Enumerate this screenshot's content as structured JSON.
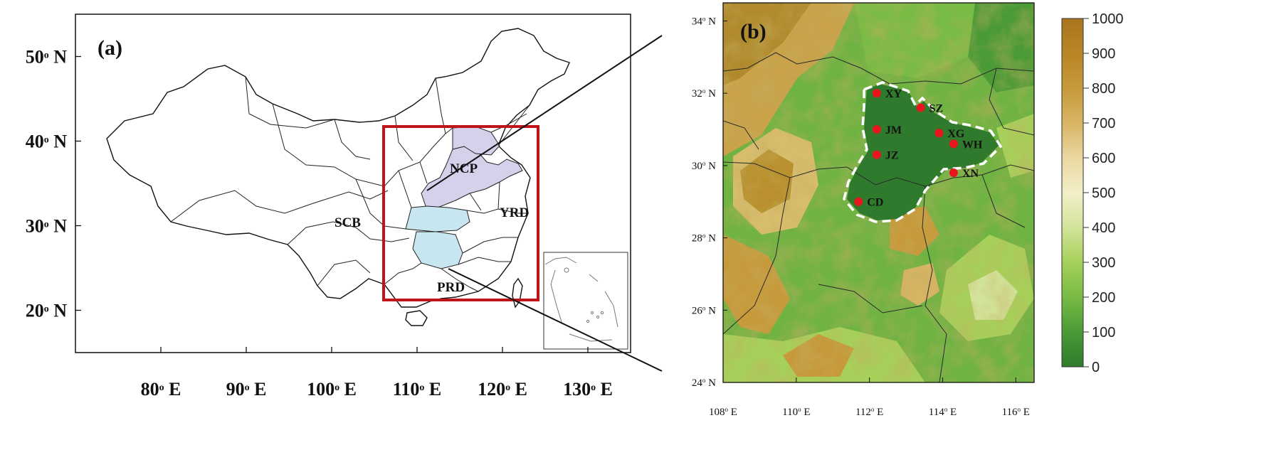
{
  "panel_a": {
    "label": "(a)",
    "lat_ticks": [
      {
        "sup": "o",
        "text": "50",
        "suffix": " N",
        "lat": 50
      },
      {
        "sup": "o",
        "text": "40",
        "suffix": " N",
        "lat": 40
      },
      {
        "sup": "o",
        "text": "30",
        "suffix": " N",
        "lat": 30
      },
      {
        "sup": "o",
        "text": "20",
        "suffix": " N",
        "lat": 20
      }
    ],
    "lon_ticks": [
      {
        "text": "80",
        "suffix": " E",
        "lon": 80
      },
      {
        "text": "90",
        "suffix": " E",
        "lon": 90
      },
      {
        "text": "100",
        "suffix": " E",
        "lon": 100
      },
      {
        "text": "110",
        "suffix": " E",
        "lon": 110
      },
      {
        "text": "120",
        "suffix": " E",
        "lon": 120
      },
      {
        "text": "130",
        "suffix": " E",
        "lon": 130
      }
    ],
    "regions": [
      {
        "name": "NCP",
        "color": "#d6d0ea"
      },
      {
        "name": "YRD",
        "color": "#ffffff"
      },
      {
        "name": "SCB",
        "color": "#ffffff"
      },
      {
        "name": "PRD",
        "color": "#ffffff"
      },
      {
        "name": "",
        "color": "#c8e6ef"
      }
    ],
    "zoom_box_color": "#c0141b"
  },
  "panel_b": {
    "label": "(b)",
    "lat_ticks": [
      {
        "text": "34",
        "suffix": " N",
        "lat": 34
      },
      {
        "text": "32",
        "suffix": " N",
        "lat": 32
      },
      {
        "text": "30",
        "suffix": " N",
        "lat": 30
      },
      {
        "text": "28",
        "suffix": " N",
        "lat": 28
      },
      {
        "text": "26",
        "suffix": " N",
        "lat": 26
      },
      {
        "text": "24",
        "suffix": " N",
        "lat": 24
      }
    ],
    "lon_ticks": [
      {
        "text": "108",
        "suffix": " E",
        "lon": 108
      },
      {
        "text": "110",
        "suffix": " E",
        "lon": 110
      },
      {
        "text": "112",
        "suffix": " E",
        "lon": 112
      },
      {
        "text": "114",
        "suffix": " E",
        "lon": 114
      },
      {
        "text": "116",
        "suffix": " E",
        "lon": 116
      }
    ],
    "sites": [
      {
        "code": "XY",
        "lon": 112.2,
        "lat": 32.0
      },
      {
        "code": "SZ",
        "lon": 113.4,
        "lat": 31.6
      },
      {
        "code": "JM",
        "lon": 112.2,
        "lat": 31.0
      },
      {
        "code": "XG",
        "lon": 113.9,
        "lat": 30.9
      },
      {
        "code": "WH",
        "lon": 114.3,
        "lat": 30.6
      },
      {
        "code": "JZ",
        "lon": 112.2,
        "lat": 30.3
      },
      {
        "code": "XN",
        "lon": 114.3,
        "lat": 29.8
      },
      {
        "code": "CD",
        "lon": 111.7,
        "lat": 29.0
      }
    ],
    "site_color": "#e8141e",
    "boundary_color": "#ffffff"
  },
  "colorbar": {
    "ticks": [
      "1000",
      "900",
      "800",
      "700",
      "600",
      "500",
      "400",
      "300",
      "200",
      "100",
      "0"
    ],
    "colors": [
      "#2f7a2c",
      "#4a9a36",
      "#78bb45",
      "#a6d05a",
      "#d2e49a",
      "#f3efc8",
      "#ead7a1",
      "#d8b464",
      "#c69a3b",
      "#b98525",
      "#a9751d"
    ]
  }
}
